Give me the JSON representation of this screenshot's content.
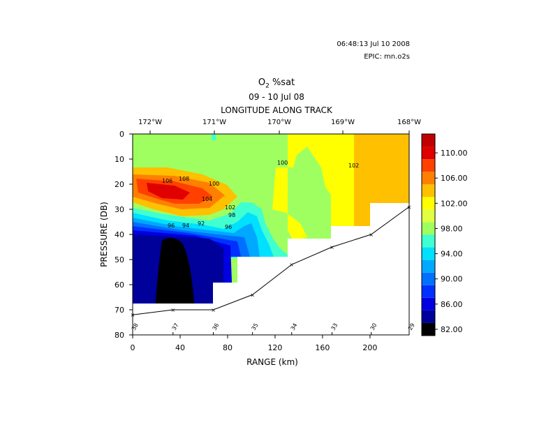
{
  "header": {
    "timestamp": "06:48:13 Jul 10 2008",
    "epic_label": "EPIC:",
    "epic_file": "mn.o2s"
  },
  "chart_data": {
    "type": "heatmap",
    "title_main": "O",
    "title_sub": "2",
    "title_rest": " %sat",
    "subtitle": "09 - 10 Jul 08",
    "top_axis_label": "LONGITUDE ALONG TRACK",
    "top_ticks": [
      "172°W",
      "171°W",
      "170°W",
      "169°W",
      "168°W"
    ],
    "xlabel": "RANGE (km)",
    "ylabel": "PRESSURE (DB)",
    "x_ticks": [
      0,
      40,
      80,
      120,
      160,
      200
    ],
    "y_ticks": [
      0,
      10,
      20,
      30,
      40,
      50,
      60,
      70,
      80
    ],
    "xlim": [
      0,
      233
    ],
    "ylim": [
      0,
      80
    ],
    "colorbar": {
      "levels": [
        82,
        84,
        86,
        88,
        90,
        92,
        94,
        96,
        98,
        100,
        102,
        104,
        106,
        108,
        110,
        112
      ],
      "tick_labels": [
        "82.00",
        "86.00",
        "90.00",
        "94.00",
        "98.00",
        "102.00",
        "106.00",
        "110.00"
      ],
      "colors": [
        "#000000",
        "#00009a",
        "#0000e0",
        "#0030ff",
        "#0070ff",
        "#00a8ff",
        "#00e0ff",
        "#40ffd0",
        "#a0ff60",
        "#e0ff40",
        "#ffff00",
        "#ffc000",
        "#ff8000",
        "#ff4000",
        "#e00000",
        "#c00000"
      ]
    },
    "contour_labels": [
      "100",
      "102",
      "100",
      "104",
      "102",
      "98",
      "96",
      "94",
      "92",
      "96",
      "106",
      "108"
    ],
    "stations": [
      {
        "id": "38",
        "range_km": 0,
        "bottom_db": 72
      },
      {
        "id": "37",
        "range_km": 34,
        "bottom_db": 70
      },
      {
        "id": "36",
        "range_km": 68,
        "bottom_db": 70
      },
      {
        "id": "35",
        "range_km": 101,
        "bottom_db": 64
      },
      {
        "id": "34",
        "range_km": 134,
        "bottom_db": 52
      },
      {
        "id": "33",
        "range_km": 168,
        "bottom_db": 45
      },
      {
        "id": "30",
        "range_km": 201,
        "bottom_db": 40
      },
      {
        "id": "29",
        "range_km": 233,
        "bottom_db": 29
      }
    ]
  }
}
